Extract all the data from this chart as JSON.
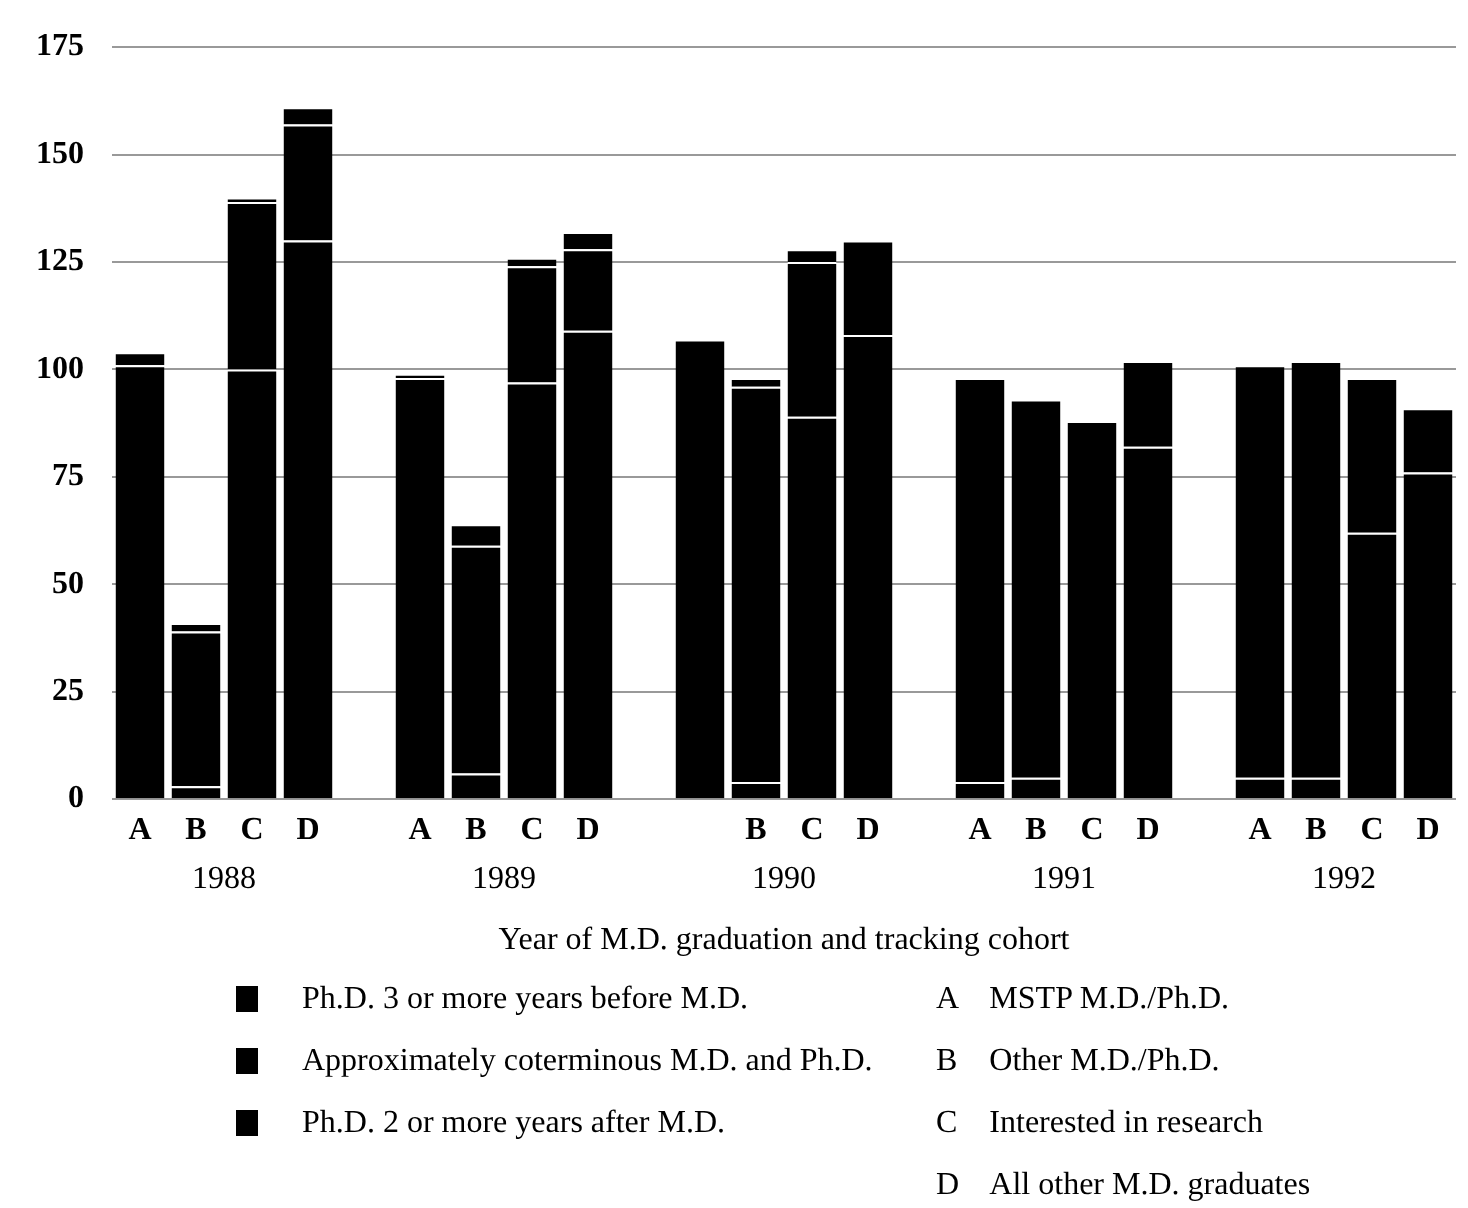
{
  "chart_data": {
    "type": "bar",
    "stacked": true,
    "xlabel": "Year of M.D. graduation and tracking cohort",
    "categories": [
      "A",
      "B",
      "C",
      "D",
      null,
      "A",
      "B",
      "C",
      "D",
      null,
      null,
      "B",
      "C",
      "D",
      null,
      "A",
      "B",
      "C",
      "D",
      null,
      "A",
      "B",
      "C",
      "D"
    ],
    "series": [
      {
        "name": "Ph.D. 3 or more years before M.D.",
        "color": "#000000",
        "values": [
          101,
          3,
          100,
          130,
          null,
          98,
          6,
          97,
          109,
          null,
          107,
          4,
          89,
          108,
          null,
          4,
          5,
          88,
          82,
          null,
          5,
          5,
          62,
          76
        ]
      },
      {
        "name": "Approximately coterminous M.D. and Ph.D.",
        "color": "#000000",
        "values": [
          3,
          36,
          39,
          27,
          null,
          1,
          53,
          27,
          19,
          null,
          0,
          92,
          36,
          22,
          null,
          94,
          88,
          0,
          20,
          null,
          96,
          97,
          36,
          15
        ]
      },
      {
        "name": "Ph.D. 2 or more years after M.D.",
        "color": "#000000",
        "values": [
          0,
          2,
          1,
          4,
          null,
          0,
          5,
          2,
          4,
          null,
          0,
          2,
          3,
          0,
          null,
          0,
          0,
          0,
          0,
          null,
          0,
          0,
          0,
          0
        ]
      }
    ],
    "ylim": [
      0,
      175
    ],
    "yticks": [
      0,
      25,
      50,
      75,
      100,
      125,
      150,
      175
    ],
    "grid": "y",
    "legend": "bottom",
    "annotations": [
      "1988",
      "1989",
      "1990",
      "1991",
      "1992",
      "A    MSTP M.D./Ph.D.",
      "B    Other M.D./Ph.D.",
      "C    Interested in research",
      "D    All other M.D. graduates"
    ]
  }
}
